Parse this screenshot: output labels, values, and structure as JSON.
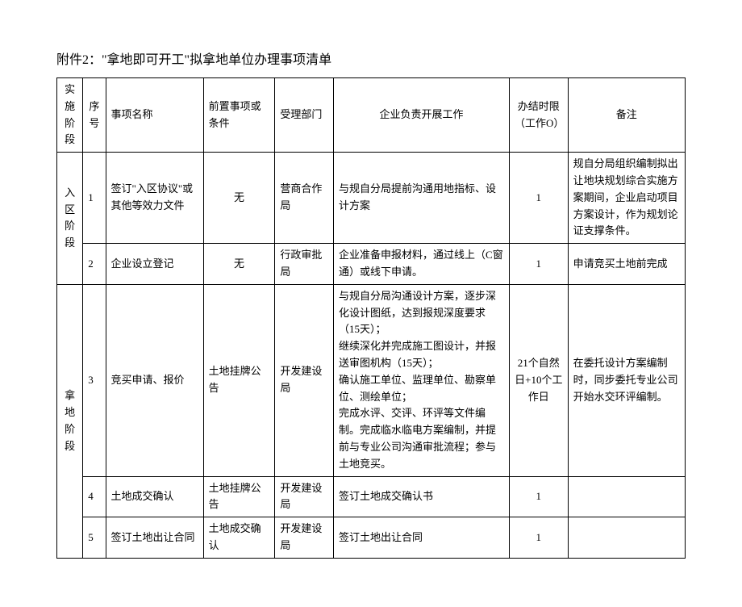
{
  "title": "附件2：\"拿地即可开工\"拟拿地单位办理事项清单",
  "columns": {
    "c0": "实施阶段",
    "c1": "序号",
    "c2": "事项名称",
    "c3": "前置事项或条件",
    "c4": "受理部门",
    "c5": "企业负责开展工作",
    "c6": "办结时限（工作O）",
    "c7": "备注"
  },
  "stages": {
    "s1": "入区阶段",
    "s2": "拿地阶段"
  },
  "rows": {
    "r1": {
      "num": "1",
      "item": "签订\"入区协议\"或其他等效力文件",
      "pre": "无",
      "dept": "营商合作局",
      "work": "与规自分局提前沟通用地指标、设计方案",
      "limit": "1",
      "note": "规自分局组织编制拟出让地块规划综合实施方案期间，企业启动项目方案设计，作为规划论证支撑条件。"
    },
    "r2": {
      "num": "2",
      "item": "企业设立登记",
      "pre": "无",
      "dept": "行政审批局",
      "work": "企业准备申报材料，通过线上（C窗通）或线下申请。",
      "limit": "1",
      "note": "申请竞买土地前完成"
    },
    "r3": {
      "num": "3",
      "item": "竞买申请、报价",
      "pre": "土地挂牌公告",
      "dept": "开发建设局",
      "work": "与规自分局沟通设计方案，逐步深化设计图纸，达到报规深度要求（15天）；\n继续深化并完成施工图设计，并报送审图机构（15天）；\n确认施工单位、监理单位、勘察单位、测绘单位；\n完成水评、交评、环评等文件编制。完成临水临电方案编制，并提前与专业公司沟通审批流程；参与土地竞买。",
      "limit": "21个自然日+10个工作日",
      "note": "在委托设计方案编制时，同步委托专业公司开始水交环评编制。"
    },
    "r4": {
      "num": "4",
      "item": "土地成交确认",
      "pre": "土地挂牌公告",
      "dept": "开发建设局",
      "work": "签订土地成交确认书",
      "limit": "1",
      "note": ""
    },
    "r5": {
      "num": "5",
      "item": "签订土地出让合同",
      "pre": "土地成交确认",
      "dept": "开发建设局",
      "work": "签订土地出让合同",
      "limit": "1",
      "note": ""
    }
  }
}
